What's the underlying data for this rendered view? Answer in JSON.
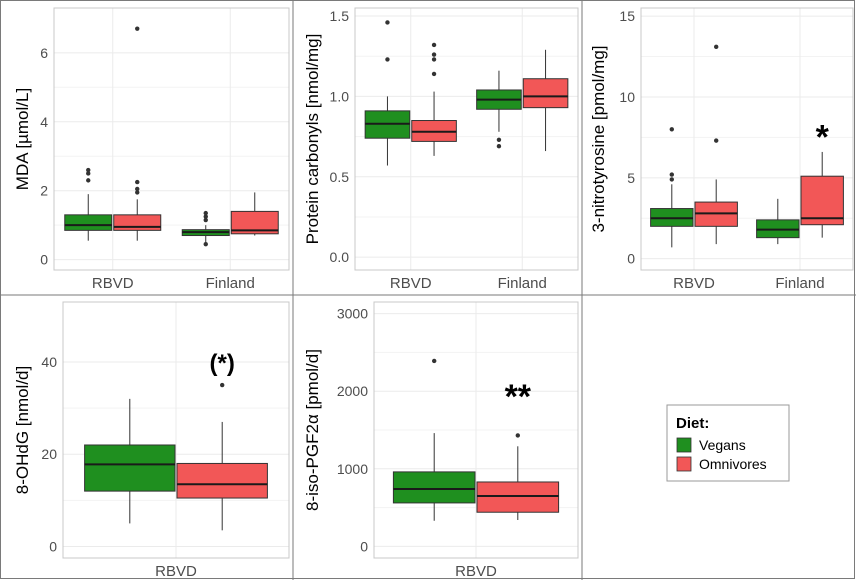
{
  "colors": {
    "vegans": "#1f8f1f",
    "omnivores": "#f25757",
    "outlier": "#333333",
    "grid": "#ebebeb",
    "panel_border": "#c8c8c8"
  },
  "legend": {
    "title": "Diet:",
    "items": [
      {
        "label": "Vegans",
        "color": "#1f8f1f"
      },
      {
        "label": "Omnivores",
        "color": "#f25757"
      }
    ],
    "position": "bottom-right"
  },
  "chart_data": [
    {
      "type": "box",
      "ylabel": "MDA [µmol/L]",
      "ylim": [
        -0.3,
        7.3
      ],
      "yticks": [
        0,
        2,
        4,
        6
      ],
      "categories": [
        "RBVD",
        "Finland"
      ],
      "grid": true,
      "series": [
        {
          "name": "Vegans",
          "boxes": [
            {
              "category": "RBVD",
              "min": 0.55,
              "q1": 0.85,
              "median": 1.0,
              "q3": 1.3,
              "max": 1.9,
              "outliers": [
                2.3,
                2.5,
                2.6
              ]
            },
            {
              "category": "Finland",
              "min": 0.5,
              "q1": 0.7,
              "median": 0.8,
              "q3": 0.87,
              "max": 1.0,
              "outliers": [
                0.45,
                1.15,
                1.25,
                1.35
              ]
            }
          ]
        },
        {
          "name": "Omnivores",
          "boxes": [
            {
              "category": "RBVD",
              "min": 0.55,
              "q1": 0.85,
              "median": 0.95,
              "q3": 1.3,
              "max": 1.75,
              "outliers": [
                1.95,
                2.05,
                2.25,
                6.7
              ]
            },
            {
              "category": "Finland",
              "min": 0.7,
              "q1": 0.75,
              "median": 0.85,
              "q3": 1.4,
              "max": 1.95,
              "outliers": []
            }
          ]
        }
      ],
      "annotations": []
    },
    {
      "type": "box",
      "ylabel": "Protein carbonyls [nmol/mg]",
      "ylim": [
        -0.08,
        1.55
      ],
      "yticks": [
        0.0,
        0.5,
        1.0,
        1.5
      ],
      "categories": [
        "RBVD",
        "Finland"
      ],
      "grid": true,
      "series": [
        {
          "name": "Vegans",
          "boxes": [
            {
              "category": "RBVD",
              "min": 0.57,
              "q1": 0.74,
              "median": 0.83,
              "q3": 0.91,
              "max": 1.0,
              "outliers": [
                1.23,
                1.46
              ]
            },
            {
              "category": "Finland",
              "min": 0.78,
              "q1": 0.92,
              "median": 0.98,
              "q3": 1.04,
              "max": 1.16,
              "outliers": [
                0.69,
                0.73
              ]
            }
          ]
        },
        {
          "name": "Omnivores",
          "boxes": [
            {
              "category": "RBVD",
              "min": 0.63,
              "q1": 0.72,
              "median": 0.78,
              "q3": 0.85,
              "max": 1.03,
              "outliers": [
                1.14,
                1.23,
                1.26,
                1.32
              ]
            },
            {
              "category": "Finland",
              "min": 0.66,
              "q1": 0.93,
              "median": 1.0,
              "q3": 1.11,
              "max": 1.29,
              "outliers": []
            }
          ]
        }
      ],
      "annotations": []
    },
    {
      "type": "box",
      "ylabel": "3-nitrotyrosine [pmol/mg]",
      "ylim": [
        -0.7,
        15.5
      ],
      "yticks": [
        0,
        5,
        10,
        15
      ],
      "categories": [
        "RBVD",
        "Finland"
      ],
      "grid": true,
      "series": [
        {
          "name": "Vegans",
          "boxes": [
            {
              "category": "RBVD",
              "min": 0.7,
              "q1": 2.0,
              "median": 2.5,
              "q3": 3.1,
              "max": 4.6,
              "outliers": [
                4.9,
                5.2,
                8.0
              ]
            },
            {
              "category": "Finland",
              "min": 0.9,
              "q1": 1.3,
              "median": 1.8,
              "q3": 2.4,
              "max": 3.7,
              "outliers": []
            }
          ]
        },
        {
          "name": "Omnivores",
          "boxes": [
            {
              "category": "RBVD",
              "min": 0.9,
              "q1": 2.0,
              "median": 2.8,
              "q3": 3.5,
              "max": 4.9,
              "outliers": [
                7.3,
                13.1
              ]
            },
            {
              "category": "Finland",
              "min": 1.3,
              "q1": 2.1,
              "median": 2.5,
              "q3": 5.1,
              "max": 6.6,
              "outliers": []
            }
          ]
        }
      ],
      "annotations": [
        {
          "text": "*",
          "category": "Finland",
          "series": "Omnivores",
          "y": 7.8
        }
      ]
    },
    {
      "type": "box",
      "ylabel": "8-OHdG [nmol/d]",
      "ylim": [
        -2.5,
        53
      ],
      "yticks": [
        0,
        20,
        40
      ],
      "categories": [
        "RBVD"
      ],
      "grid": true,
      "series": [
        {
          "name": "Vegans",
          "boxes": [
            {
              "category": "RBVD",
              "min": 5.0,
              "q1": 12.0,
              "median": 17.8,
              "q3": 22.0,
              "max": 32.0,
              "outliers": []
            }
          ]
        },
        {
          "name": "Omnivores",
          "boxes": [
            {
              "category": "RBVD",
              "min": 3.5,
              "q1": 10.5,
              "median": 13.5,
              "q3": 18.0,
              "max": 27.0,
              "outliers": [
                35.0
              ]
            }
          ]
        }
      ],
      "annotations": [
        {
          "text": "(*)",
          "category": "RBVD",
          "series": "Omnivores",
          "y": 40.2
        }
      ]
    },
    {
      "type": "box",
      "ylabel": "8-iso-PGF2α [pmol/d]",
      "ylim": [
        -150,
        3150
      ],
      "yticks": [
        0,
        1000,
        2000,
        3000
      ],
      "categories": [
        "RBVD"
      ],
      "grid": true,
      "series": [
        {
          "name": "Vegans",
          "boxes": [
            {
              "category": "RBVD",
              "min": 330,
              "q1": 560,
              "median": 740,
              "q3": 960,
              "max": 1460,
              "outliers": [
                2390
              ]
            }
          ]
        },
        {
          "name": "Omnivores",
          "boxes": [
            {
              "category": "RBVD",
              "min": 340,
              "q1": 440,
              "median": 650,
              "q3": 830,
              "max": 1290,
              "outliers": [
                1430
              ]
            }
          ]
        }
      ],
      "annotations": [
        {
          "text": "**",
          "category": "RBVD",
          "series": "Omnivores",
          "y": 1990
        }
      ]
    }
  ]
}
